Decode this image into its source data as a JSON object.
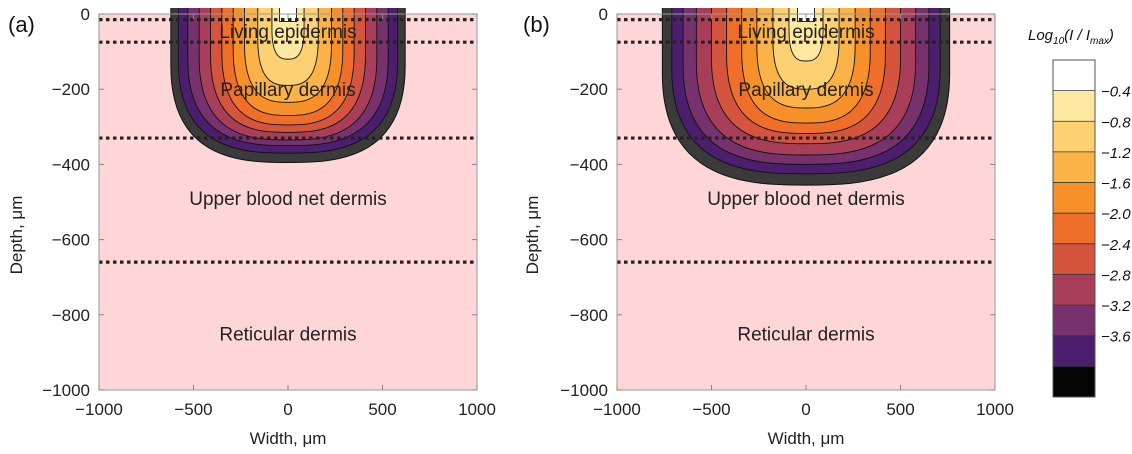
{
  "chart_data": [
    {
      "type": "contour",
      "panel_label": "(a)",
      "xlabel": "Width, μm",
      "ylabel": "Depth, μm",
      "xlim": [
        -1000,
        1000
      ],
      "ylim": [
        -1000,
        0
      ],
      "x_ticks": [
        -1000,
        -500,
        0,
        500,
        1000
      ],
      "y_ticks": [
        0,
        -200,
        -400,
        -600,
        -800,
        -1000
      ],
      "layer_boundaries": [
        -15,
        -75,
        -330,
        -660
      ],
      "layers": [
        {
          "name": "Living epidermis",
          "x": 0,
          "y": -45
        },
        {
          "name": "Papillary dermis",
          "x": 0,
          "y": -200
        },
        {
          "name": "Upper blood net dermis",
          "x": 0,
          "y": -490
        },
        {
          "name": "Reticular dermis",
          "x": 0,
          "y": -850
        }
      ],
      "contours": [
        {
          "level": -4.0,
          "half_width": 620,
          "depth": 395
        },
        {
          "level": -3.6,
          "half_width": 580,
          "depth": 370
        },
        {
          "level": -3.2,
          "half_width": 530,
          "depth": 350
        },
        {
          "level": -2.8,
          "half_width": 470,
          "depth": 335
        },
        {
          "level": -2.4,
          "half_width": 410,
          "depth": 315
        },
        {
          "level": -2.0,
          "half_width": 350,
          "depth": 295
        },
        {
          "level": -1.6,
          "half_width": 290,
          "depth": 270
        },
        {
          "level": -1.2,
          "half_width": 230,
          "depth": 235
        },
        {
          "level": -0.8,
          "half_width": 160,
          "depth": 190
        },
        {
          "level": -0.4,
          "half_width": 85,
          "depth": 120
        },
        {
          "level": 0.0,
          "half_width": 45,
          "depth": 20
        }
      ]
    },
    {
      "type": "contour",
      "panel_label": "(b)",
      "xlabel": "Width, μm",
      "ylabel": "Depth, μm",
      "xlim": [
        -1000,
        1000
      ],
      "ylim": [
        -1000,
        0
      ],
      "x_ticks": [
        -1000,
        -500,
        0,
        500,
        1000
      ],
      "y_ticks": [
        0,
        -200,
        -400,
        -600,
        -800,
        -1000
      ],
      "layer_boundaries": [
        -15,
        -75,
        -330,
        -660
      ],
      "layers": [
        {
          "name": "Living epidermis",
          "x": 0,
          "y": -45
        },
        {
          "name": "Papillary dermis",
          "x": 0,
          "y": -200
        },
        {
          "name": "Upper blood net dermis",
          "x": 0,
          "y": -490
        },
        {
          "name": "Reticular dermis",
          "x": 0,
          "y": -850
        }
      ],
      "contours": [
        {
          "level": -4.0,
          "half_width": 760,
          "depth": 455
        },
        {
          "level": -3.6,
          "half_width": 710,
          "depth": 425
        },
        {
          "level": -3.2,
          "half_width": 650,
          "depth": 400
        },
        {
          "level": -2.8,
          "half_width": 580,
          "depth": 375
        },
        {
          "level": -2.4,
          "half_width": 500,
          "depth": 345
        },
        {
          "level": -2.0,
          "half_width": 420,
          "depth": 318
        },
        {
          "level": -1.6,
          "half_width": 340,
          "depth": 290
        },
        {
          "level": -1.2,
          "half_width": 260,
          "depth": 250
        },
        {
          "level": -0.8,
          "half_width": 175,
          "depth": 200
        },
        {
          "level": -0.4,
          "half_width": 90,
          "depth": 125
        },
        {
          "level": 0.0,
          "half_width": 45,
          "depth": 20
        }
      ]
    }
  ],
  "colorbar": {
    "title_prefix": "Log",
    "title_sub": "10",
    "title_mid": "(I / I",
    "title_sub2": "max",
    "title_suffix": ")",
    "levels": [
      "-0.4",
      "-0.8",
      "-1.2",
      "-1.6",
      "-2.0",
      "-2.4",
      "-2.8",
      "-3.2",
      "-3.6"
    ],
    "colors": [
      "#ffffff",
      "#ffe8a0",
      "#fdd172",
      "#fbb347",
      "#f8902a",
      "#ef6e2a",
      "#d4543e",
      "#a83e5a",
      "#77316c",
      "#4c1e6e",
      "#050505"
    ]
  },
  "colors": {
    "background_fill": "#ffd6d8",
    "outer_contour": "#3a3a3a",
    "boundary_line": "#222222"
  }
}
